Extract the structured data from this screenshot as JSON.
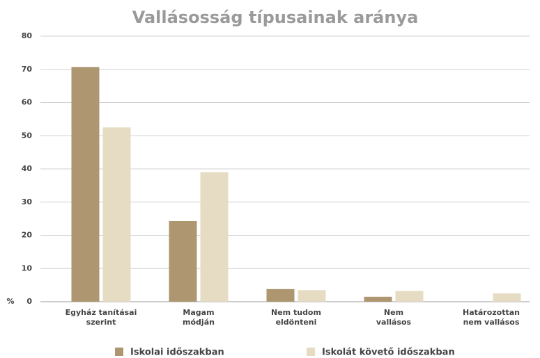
{
  "chart_data": {
    "type": "bar",
    "title": "Vallásosság típusainak aránya",
    "y_label": "%",
    "categories": [
      "Egyház tanításai\nszerint",
      "Magam\nmódján",
      "Nem tudom\neldönteni",
      "Nem\nvallásos",
      "Határozottan\nnem vallásos"
    ],
    "series": [
      {
        "name": "Iskolai időszakban",
        "color": "#ad9670",
        "values": [
          70.7,
          24.3,
          3.8,
          1.5,
          0
        ]
      },
      {
        "name": "Iskolát követő időszakban",
        "color": "#e6dcc3",
        "values": [
          52.5,
          39,
          3.5,
          3.2,
          2.5
        ]
      }
    ],
    "ylim": [
      0,
      80
    ],
    "yticks": [
      0,
      10,
      20,
      30,
      40,
      50,
      60,
      70,
      80
    ],
    "grid": true
  }
}
